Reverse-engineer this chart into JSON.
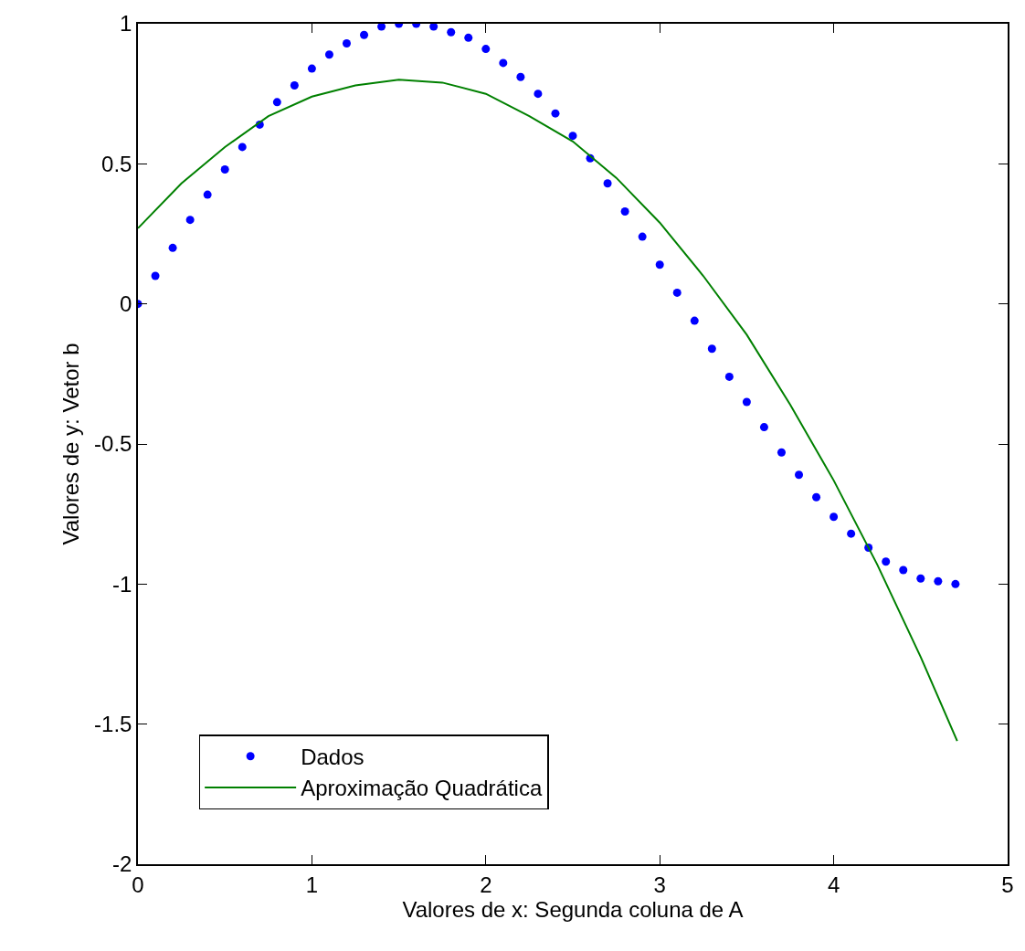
{
  "chart_data": {
    "type": "line",
    "xlabel": "Valores de x: Segunda coluna de A",
    "ylabel": "Valores de y: Vetor b",
    "xlim": [
      0,
      5
    ],
    "xticks": [
      0,
      1,
      2,
      3,
      4,
      5
    ],
    "ylim": [
      -2,
      1
    ],
    "yticks": [
      -2,
      -1.5,
      -1,
      -0.5,
      0,
      0.5,
      1
    ],
    "legend": "bottom left",
    "series": [
      {
        "name": "Dados",
        "type": "scatter",
        "marker": "circle",
        "color": "#0000ff",
        "x": [
          0,
          0.1,
          0.2,
          0.3,
          0.4,
          0.5,
          0.6,
          0.7,
          0.8,
          0.9,
          1.0,
          1.1,
          1.2,
          1.3,
          1.4,
          1.5,
          1.6,
          1.7,
          1.8,
          1.9,
          2.0,
          2.1,
          2.2,
          2.3,
          2.4,
          2.5,
          2.6,
          2.7,
          2.8,
          2.9,
          3.0,
          3.1,
          3.2,
          3.3,
          3.4,
          3.5,
          3.6,
          3.7,
          3.8,
          3.9,
          4.0,
          4.1,
          4.2,
          4.3,
          4.4,
          4.5,
          4.6,
          4.7
        ],
        "values": [
          0,
          0.1,
          0.2,
          0.3,
          0.39,
          0.48,
          0.56,
          0.64,
          0.72,
          0.78,
          0.84,
          0.89,
          0.93,
          0.96,
          0.99,
          1.0,
          1.0,
          0.99,
          0.97,
          0.95,
          0.91,
          0.86,
          0.81,
          0.75,
          0.68,
          0.6,
          0.52,
          0.43,
          0.33,
          0.24,
          0.14,
          0.04,
          -0.06,
          -0.16,
          -0.26,
          -0.35,
          -0.44,
          -0.53,
          -0.61,
          -0.69,
          -0.76,
          -0.82,
          -0.87,
          -0.92,
          -0.95,
          -0.98,
          -0.99,
          -1.0
        ]
      },
      {
        "name": "Aproximação Quadrática",
        "line_style": "solid",
        "color": "#008000",
        "x": [
          0,
          0.25,
          0.5,
          0.75,
          1.0,
          1.25,
          1.5,
          1.75,
          2.0,
          2.25,
          2.5,
          2.75,
          3.0,
          3.25,
          3.5,
          3.75,
          4.0,
          4.25,
          4.5,
          4.71
        ],
        "values": [
          0.27,
          0.43,
          0.56,
          0.67,
          0.74,
          0.78,
          0.8,
          0.79,
          0.75,
          0.67,
          0.58,
          0.45,
          0.29,
          0.1,
          -0.11,
          -0.36,
          -0.63,
          -0.93,
          -1.26,
          -1.56
        ]
      }
    ]
  }
}
